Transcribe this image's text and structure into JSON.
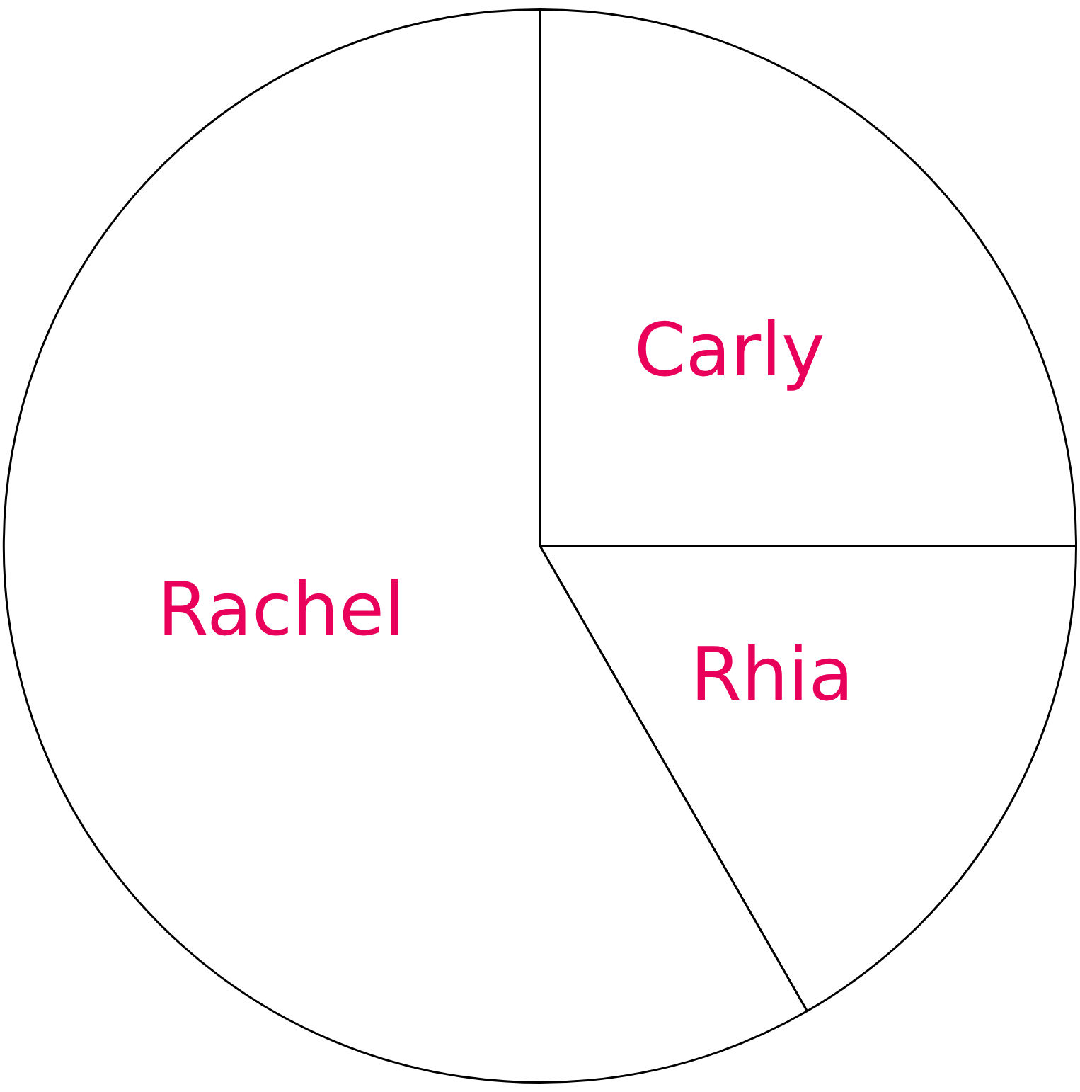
{
  "chart_data": {
    "type": "pie",
    "categories": [
      "Carly",
      "Rhia",
      "Rachel"
    ],
    "values": [
      25,
      16.7,
      58.3
    ],
    "colors": [
      "#ffffff",
      "#ffffff",
      "#ffffff"
    ],
    "legend": false
  }
}
